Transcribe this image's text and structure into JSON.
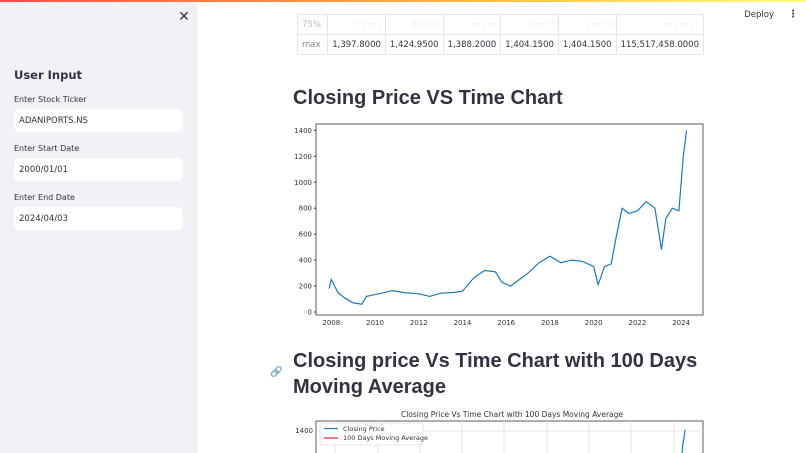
{
  "header": {
    "deploy_label": "Deploy",
    "menu_icon": "kebab-menu-icon"
  },
  "sidebar": {
    "close_icon": "close-icon",
    "title": "User Input",
    "fields": [
      {
        "label": "Enter Stock Ticker",
        "value": "ADANIPORTS.NS"
      },
      {
        "label": "Enter Start Date",
        "value": "2000/01/01"
      },
      {
        "label": "Enter End Date",
        "value": "2024/04/03"
      }
    ]
  },
  "table": {
    "max_row": [
      "max",
      "1,397.8000",
      "1,424.9500",
      "1,388.2000",
      "1,404.1500",
      "1,404.1500",
      "115,517,458.0000"
    ]
  },
  "sections": {
    "chart1_heading": "Closing Price VS Time Chart",
    "chart2_heading": "Closing price Vs Time Chart with 100 Days Moving Average"
  },
  "chart_data": [
    {
      "type": "line",
      "title": "",
      "xlabel": "",
      "ylabel": "",
      "x_ticks": [
        "2008",
        "2010",
        "2012",
        "2014",
        "2016",
        "2018",
        "2020",
        "2022",
        "2024"
      ],
      "y_ticks": [
        0,
        200,
        400,
        600,
        800,
        1000,
        1200,
        1400
      ],
      "ylim": [
        0,
        1450
      ],
      "series": [
        {
          "name": "Closing Price",
          "color": "#1f77b4",
          "x": [
            2007.9,
            2008.0,
            2008.3,
            2008.6,
            2009.0,
            2009.4,
            2009.6,
            2010.3,
            2010.8,
            2011.3,
            2012.0,
            2012.5,
            2013.0,
            2013.6,
            2014.0,
            2014.5,
            2015.0,
            2015.5,
            2015.8,
            2016.2,
            2016.6,
            2017.0,
            2017.5,
            2018.0,
            2018.5,
            2019.0,
            2019.5,
            2020.0,
            2020.2,
            2020.5,
            2020.8,
            2021.0,
            2021.3,
            2021.6,
            2022.0,
            2022.4,
            2022.8,
            2023.1,
            2023.3,
            2023.6,
            2023.9,
            2024.1,
            2024.25
          ],
          "values": [
            180,
            250,
            150,
            110,
            70,
            60,
            120,
            145,
            165,
            150,
            140,
            120,
            145,
            150,
            160,
            260,
            320,
            310,
            230,
            200,
            250,
            300,
            380,
            430,
            380,
            400,
            390,
            350,
            210,
            350,
            370,
            550,
            800,
            760,
            780,
            850,
            800,
            480,
            720,
            800,
            780,
            1200,
            1400
          ]
        }
      ]
    },
    {
      "type": "line",
      "title": "Closing Price Vs Time Chart with 100 Days Moving Average",
      "legend": [
        "Closing Price",
        "100 Days Moving Average"
      ],
      "legend_position": "upper left",
      "y_ticks_visible": [
        1400
      ],
      "grid": true,
      "series": [
        {
          "name": "Closing Price",
          "color": "#1f77b4"
        },
        {
          "name": "100 Days Moving Average",
          "color": "#d62728"
        }
      ]
    }
  ]
}
